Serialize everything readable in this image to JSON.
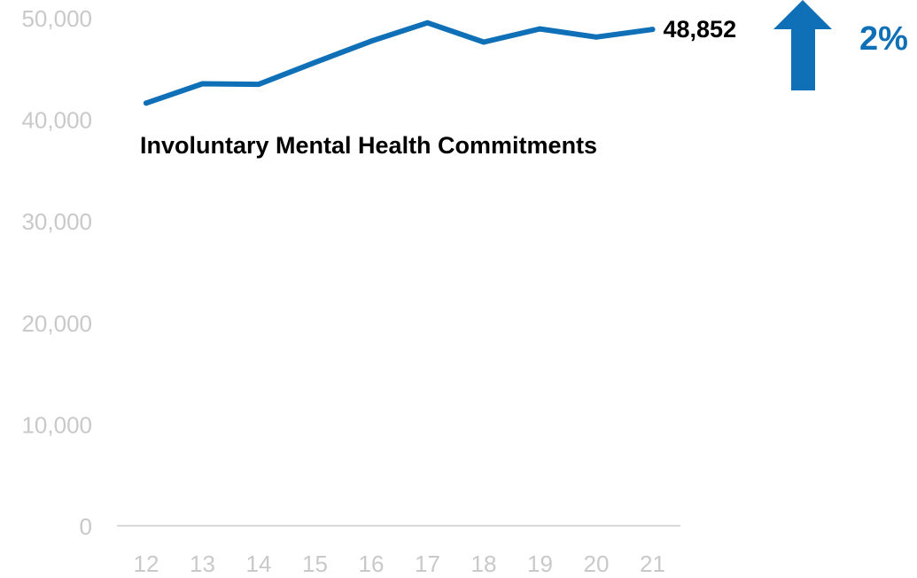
{
  "chart_data": {
    "type": "line",
    "title": "Involuntary Mental Health Commitments",
    "x": [
      "12",
      "13",
      "14",
      "15",
      "16",
      "17",
      "18",
      "19",
      "20",
      "21"
    ],
    "series": [
      {
        "values": [
          41600,
          43500,
          43450,
          45600,
          47700,
          49500,
          47600,
          48900,
          48100,
          48852
        ]
      }
    ],
    "ylim": [
      0,
      50000
    ],
    "yticks": [
      "0",
      "10,000",
      "20,000",
      "30,000",
      "40,000",
      "50,000"
    ],
    "grid": false,
    "last_value_label": "48,852",
    "change": {
      "direction": "up",
      "label": "2%"
    },
    "colors": {
      "line": "#0f70b7",
      "arrow": "#0f70b7",
      "tick_text": "#c9c9c9",
      "axis": "#d9d9d9"
    }
  }
}
